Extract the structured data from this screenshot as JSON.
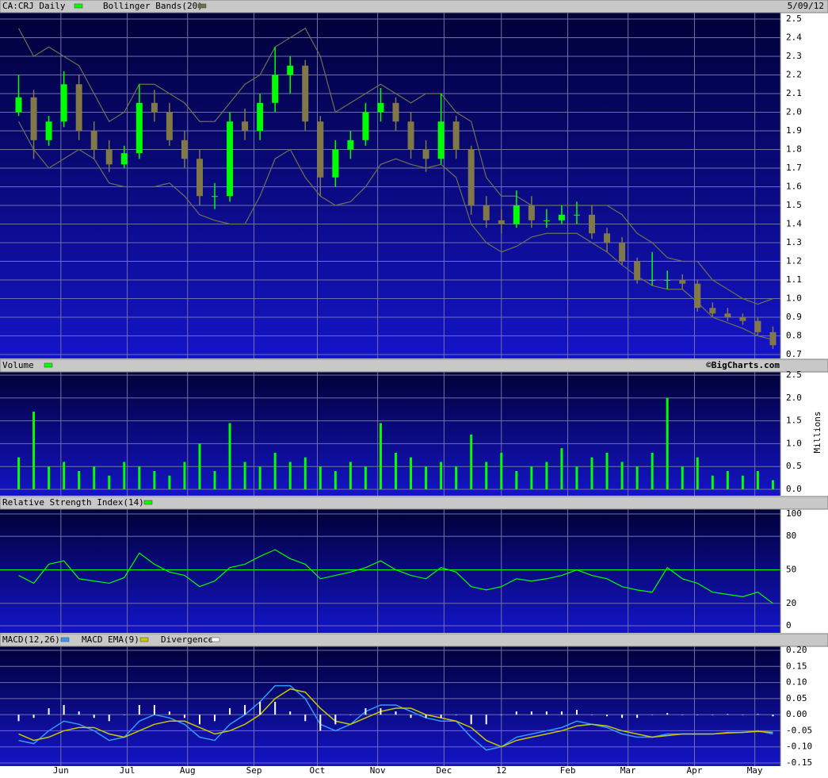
{
  "chart_data": [
    {
      "type": "candlestick",
      "date": "5/09/12",
      "series": [
        {
          "name": "CA:CRJ Daily",
          "color": "#00ff00",
          "down_color": "#807848",
          "open": [
            2.0,
            2.08,
            1.85,
            1.95,
            2.15,
            1.9,
            1.8,
            1.72,
            1.78,
            2.05,
            2.0,
            1.85,
            1.75,
            1.55,
            1.55,
            1.95,
            1.9,
            2.05,
            2.2,
            2.25,
            1.95,
            1.65,
            1.8,
            1.85,
            2.0,
            2.05,
            1.95,
            1.8,
            1.75,
            1.95,
            1.8,
            1.5,
            1.42,
            1.4,
            1.5,
            1.42,
            1.42,
            1.45,
            1.45,
            1.35,
            1.3,
            1.2,
            1.1,
            1.1,
            1.1,
            1.08,
            0.95,
            0.92,
            0.9,
            0.88,
            0.82
          ],
          "high": [
            2.2,
            2.12,
            1.98,
            2.22,
            2.2,
            1.95,
            1.85,
            1.82,
            2.15,
            2.12,
            2.05,
            1.9,
            1.8,
            1.62,
            2.0,
            2.02,
            2.1,
            2.35,
            2.3,
            2.28,
            1.98,
            1.85,
            1.9,
            2.05,
            2.13,
            2.08,
            2.0,
            1.85,
            2.1,
            1.98,
            1.82,
            1.55,
            1.48,
            1.58,
            1.55,
            1.48,
            1.5,
            1.52,
            1.5,
            1.38,
            1.33,
            1.22,
            1.25,
            1.15,
            1.13,
            1.1,
            0.98,
            0.95,
            0.92,
            0.9,
            0.85
          ],
          "low": [
            1.98,
            1.75,
            1.82,
            1.92,
            1.85,
            1.75,
            1.68,
            1.7,
            1.75,
            1.95,
            1.82,
            1.7,
            1.5,
            1.48,
            1.52,
            1.85,
            1.85,
            2.0,
            2.1,
            1.9,
            1.55,
            1.6,
            1.75,
            1.82,
            1.95,
            1.9,
            1.75,
            1.68,
            1.72,
            1.75,
            1.45,
            1.38,
            1.35,
            1.38,
            1.38,
            1.38,
            1.4,
            1.4,
            1.32,
            1.25,
            1.18,
            1.08,
            1.07,
            1.05,
            1.05,
            0.93,
            0.9,
            0.88,
            0.86,
            0.8,
            0.73
          ],
          "close": [
            2.08,
            1.85,
            1.95,
            2.15,
            1.9,
            1.8,
            1.72,
            1.78,
            2.05,
            2.0,
            1.85,
            1.75,
            1.55,
            1.55,
            1.95,
            1.9,
            2.05,
            2.2,
            2.25,
            1.95,
            1.65,
            1.8,
            1.85,
            2.0,
            2.05,
            1.95,
            1.8,
            1.75,
            1.95,
            1.8,
            1.5,
            1.42,
            1.4,
            1.5,
            1.42,
            1.42,
            1.45,
            1.45,
            1.35,
            1.3,
            1.2,
            1.1,
            1.1,
            1.1,
            1.08,
            0.95,
            0.92,
            0.9,
            0.88,
            0.82,
            0.75
          ]
        },
        {
          "name": "Bollinger Bands(20)",
          "color": "#707050",
          "upper": [
            2.45,
            2.3,
            2.35,
            2.3,
            2.25,
            2.1,
            1.95,
            2.0,
            2.15,
            2.15,
            2.1,
            2.05,
            1.95,
            1.95,
            2.05,
            2.15,
            2.2,
            2.35,
            2.4,
            2.45,
            2.3,
            2.0,
            2.05,
            2.1,
            2.15,
            2.1,
            2.05,
            2.1,
            2.1,
            2.0,
            1.95,
            1.65,
            1.55,
            1.55,
            1.5,
            1.5,
            1.5,
            1.5,
            1.5,
            1.5,
            1.45,
            1.35,
            1.3,
            1.22,
            1.2,
            1.2,
            1.1,
            1.05,
            1.0,
            0.97,
            1.0
          ],
          "lower": [
            1.95,
            1.8,
            1.7,
            1.75,
            1.8,
            1.75,
            1.62,
            1.6,
            1.6,
            1.6,
            1.62,
            1.55,
            1.45,
            1.42,
            1.4,
            1.4,
            1.55,
            1.75,
            1.8,
            1.65,
            1.55,
            1.5,
            1.52,
            1.6,
            1.72,
            1.75,
            1.72,
            1.7,
            1.72,
            1.65,
            1.4,
            1.3,
            1.25,
            1.28,
            1.33,
            1.35,
            1.35,
            1.35,
            1.3,
            1.25,
            1.18,
            1.12,
            1.07,
            1.05,
            1.05,
            0.98,
            0.9,
            0.87,
            0.84,
            0.8,
            0.78
          ]
        }
      ],
      "ylim": [
        0.7,
        2.5
      ],
      "yticks": [
        0.7,
        0.8,
        0.9,
        {
          "value": 1,
          "label": "1.0"
        },
        1.1,
        1.2,
        1.3,
        1.4,
        1.5,
        1.6,
        1.7,
        1.8,
        1.9,
        {
          "value": 2,
          "label": "2.0"
        },
        2.1,
        2.2,
        2.3,
        2.4,
        2.5
      ],
      "grid": true
    },
    {
      "type": "bar",
      "title": "Volume",
      "credit": "©BigCharts.com",
      "y_label": "Millions",
      "color": "#00ff00",
      "values": [
        0.7,
        1.7,
        0.5,
        0.6,
        0.4,
        0.5,
        0.3,
        0.6,
        0.5,
        0.4,
        0.3,
        0.6,
        1.0,
        0.4,
        1.45,
        0.6,
        0.5,
        0.8,
        0.6,
        0.7,
        0.5,
        0.4,
        0.6,
        0.5,
        1.45,
        0.8,
        0.7,
        0.5,
        0.6,
        0.5,
        1.2,
        0.6,
        0.8,
        0.4,
        0.5,
        0.6,
        0.9,
        0.5,
        0.7,
        0.8,
        0.6,
        0.5,
        0.8,
        2.0,
        0.5,
        0.7,
        0.3,
        0.4,
        0.3,
        0.4,
        0.2
      ],
      "ylim": [
        0,
        2.5
      ],
      "yticks": [
        {
          "value": 0,
          "label": "0.0"
        },
        0.5,
        {
          "value": 1,
          "label": "1.0"
        },
        1.5,
        {
          "value": 2,
          "label": "2.0"
        },
        2.5
      ],
      "grid": true
    },
    {
      "type": "line",
      "title": "Relative Strength Index(14)",
      "color": "#00ff00",
      "reference_line": 50,
      "values": [
        45,
        38,
        55,
        58,
        42,
        40,
        38,
        43,
        65,
        55,
        48,
        45,
        35,
        40,
        52,
        55,
        62,
        68,
        60,
        55,
        42,
        45,
        48,
        52,
        58,
        50,
        45,
        42,
        52,
        48,
        35,
        32,
        35,
        42,
        40,
        42,
        45,
        50,
        45,
        42,
        35,
        32,
        30,
        52,
        42,
        38,
        30,
        28,
        26,
        30,
        20
      ],
      "ylim": [
        0,
        100
      ],
      "yticks": [
        0,
        20,
        50,
        80,
        100
      ],
      "grid": true
    },
    {
      "type": "line",
      "series": [
        {
          "name": "MACD(12,26)",
          "type": "line",
          "color": "#3399ff",
          "values": [
            -0.08,
            -0.09,
            -0.05,
            -0.02,
            -0.03,
            -0.05,
            -0.08,
            -0.07,
            -0.02,
            0.0,
            -0.01,
            -0.03,
            -0.07,
            -0.08,
            -0.03,
            0.0,
            0.04,
            0.09,
            0.09,
            0.05,
            -0.03,
            -0.05,
            -0.03,
            0.01,
            0.03,
            0.03,
            0.01,
            -0.01,
            -0.02,
            -0.02,
            -0.07,
            -0.11,
            -0.1,
            -0.07,
            -0.06,
            -0.05,
            -0.04,
            -0.02,
            -0.03,
            -0.04,
            -0.06,
            -0.07,
            -0.07,
            -0.06,
            -0.06,
            -0.06,
            -0.06,
            -0.055,
            -0.055,
            -0.05,
            -0.06
          ]
        },
        {
          "name": "MACD EMA(9)",
          "type": "line",
          "color": "#c8c800",
          "values": [
            -0.06,
            -0.08,
            -0.07,
            -0.05,
            -0.04,
            -0.04,
            -0.06,
            -0.07,
            -0.05,
            -0.03,
            -0.02,
            -0.02,
            -0.04,
            -0.06,
            -0.05,
            -0.03,
            0.0,
            0.05,
            0.08,
            0.07,
            0.02,
            -0.02,
            -0.03,
            -0.01,
            0.01,
            0.02,
            0.02,
            0.0,
            -0.01,
            -0.02,
            -0.04,
            -0.08,
            -0.1,
            -0.08,
            -0.07,
            -0.06,
            -0.05,
            -0.035,
            -0.03,
            -0.035,
            -0.05,
            -0.06,
            -0.07,
            -0.065,
            -0.06,
            -0.06,
            -0.06,
            -0.057,
            -0.055,
            -0.052,
            -0.055
          ]
        },
        {
          "name": "Divergence",
          "type": "bar",
          "color": "#ffffff",
          "values": [
            -0.02,
            -0.01,
            0.02,
            0.03,
            0.01,
            -0.01,
            -0.02,
            0,
            0.03,
            0.03,
            0.01,
            -0.01,
            -0.03,
            -0.02,
            0.02,
            0.03,
            0.04,
            0.04,
            0.01,
            -0.02,
            -0.05,
            -0.03,
            0,
            0.02,
            0.02,
            0.01,
            -0.01,
            -0.01,
            -0.01,
            0,
            -0.03,
            -0.03,
            0,
            0.01,
            0.01,
            0.01,
            0.01,
            0.015,
            0,
            -0.005,
            -0.01,
            -0.01,
            0,
            0.005,
            0,
            0,
            0,
            0.002,
            0,
            0.002,
            -0.005
          ]
        }
      ],
      "ylim": [
        -0.15,
        0.2
      ],
      "yticks": [
        -0.15,
        {
          "value": -0.1,
          "label": "-0.10"
        },
        -0.05,
        {
          "value": 0,
          "label": "0.00"
        },
        0.05,
        {
          "value": 0.1,
          "label": "0.10"
        },
        0.15,
        {
          "value": 0.2,
          "label": "0.20"
        }
      ],
      "xlim": [
        -0.5,
        50.5
      ],
      "xticks": [
        {
          "value": 2.8,
          "label": "Jun"
        },
        {
          "value": 7.2,
          "label": "Jul"
        },
        {
          "value": 11.2,
          "label": "Aug"
        },
        {
          "value": 15.6,
          "label": "Sep"
        },
        {
          "value": 19.8,
          "label": "Oct"
        },
        {
          "value": 23.8,
          "label": "Nov"
        },
        {
          "value": 28.2,
          "label": "Dec"
        },
        {
          "value": 32.0,
          "label": "12"
        },
        {
          "value": 36.4,
          "label": "Feb"
        },
        {
          "value": 40.4,
          "label": "Mar"
        },
        {
          "value": 44.8,
          "label": "Apr"
        },
        {
          "value": 48.8,
          "label": "May"
        }
      ],
      "grid": true
    }
  ]
}
